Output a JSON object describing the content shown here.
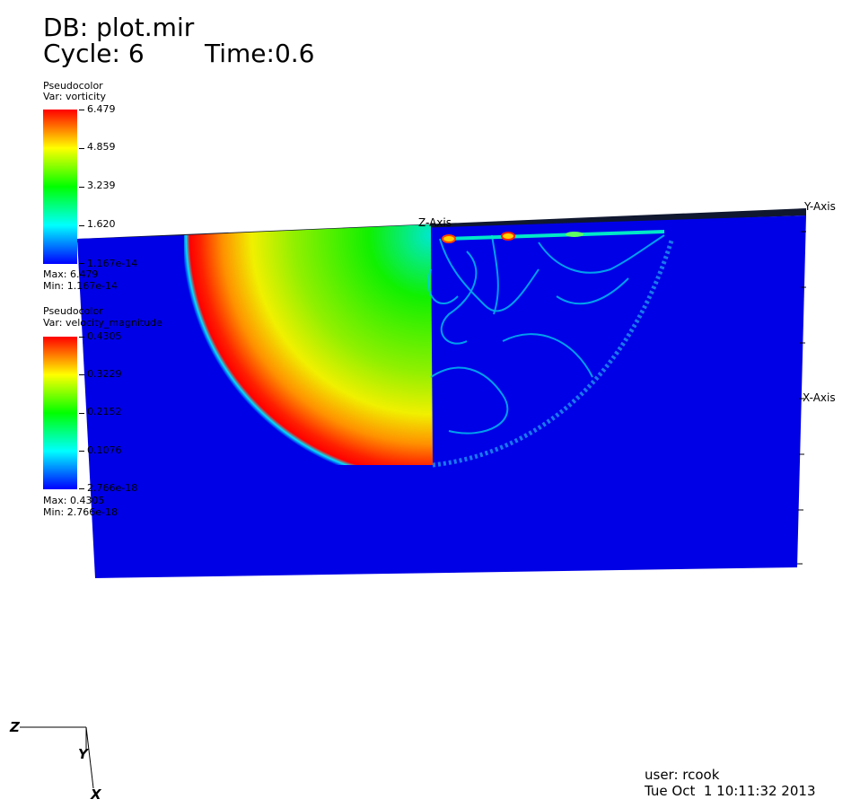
{
  "header": {
    "db_label": "DB: plot.mir",
    "cycle_label": "Cycle: 6",
    "time_label": "Time:0.6"
  },
  "legends": [
    {
      "plot_type": "Pseudocolor",
      "var_label": "Var: vorticity",
      "ticks": [
        "6.479",
        "4.859",
        "3.239",
        "1.620",
        "1.167e-14"
      ],
      "max_label": "Max:  6.479",
      "min_label": "Min:  1.167e-14"
    },
    {
      "plot_type": "Pseudocolor",
      "var_label": "Var: velocity_magnitude",
      "ticks": [
        "0.4305",
        "0.3229",
        "0.2152",
        "0.1076",
        "2.766e-18"
      ],
      "max_label": "Max:  0.4305",
      "min_label": "Min:  2.766e-18"
    }
  ],
  "axes": {
    "z_axis_label": "Z-Axis",
    "y_axis_label": "Y-Axis",
    "x_axis_label": "X-Axis"
  },
  "triad": {
    "z": "Z",
    "y": "Y",
    "x": "X"
  },
  "footer": {
    "user": "user: rcook",
    "timestamp": "Tue Oct  1 10:11:32 2013"
  },
  "colors": {
    "background": "#ffffff",
    "field_low": "#0000e6",
    "colormap": [
      "#0000ff",
      "#00ffff",
      "#00ff00",
      "#ffff00",
      "#ff0000"
    ]
  }
}
